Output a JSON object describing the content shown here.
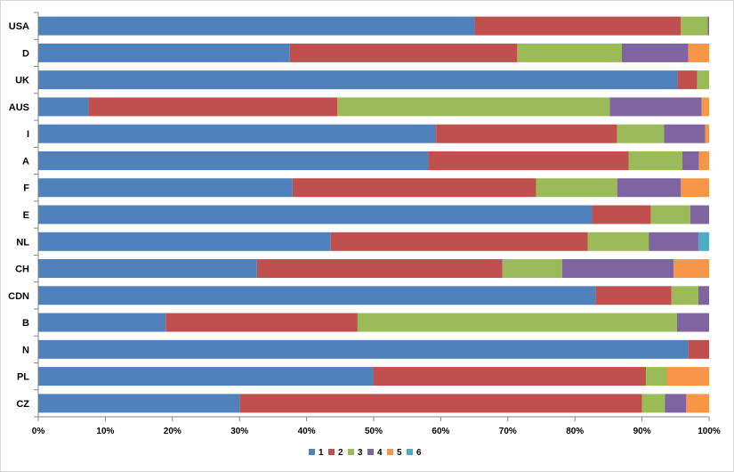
{
  "chart_data": {
    "type": "bar",
    "orientation": "horizontal",
    "stacked": "percent",
    "categories": [
      "USA",
      "D",
      "UK",
      "AUS",
      "I",
      "A",
      "F",
      "E",
      "NL",
      "CH",
      "CDN",
      "B",
      "N",
      "PL",
      "CZ"
    ],
    "series": [
      {
        "name": "1",
        "color": "#4f81bd",
        "values": [
          65,
          37.5,
          95.3,
          7.5,
          59.3,
          58.1,
          37.9,
          82.5,
          43.6,
          32.6,
          83.1,
          19,
          96.9,
          50,
          30
        ]
      },
      {
        "name": "2",
        "color": "#c0504d",
        "values": [
          30.8,
          33.9,
          2.9,
          37.1,
          27,
          29.9,
          36.3,
          8.8,
          38.3,
          36.6,
          11.3,
          28.6,
          3.1,
          40.6,
          60
        ]
      },
      {
        "name": "3",
        "color": "#9bbb59",
        "values": [
          4,
          15.6,
          1.8,
          40.6,
          7,
          8,
          12.1,
          5.9,
          9.1,
          8.9,
          4,
          47.6,
          0,
          3.1,
          3.4
        ]
      },
      {
        "name": "4",
        "color": "#8064a2",
        "values": [
          0.2,
          9.9,
          0,
          13.7,
          6.1,
          2.5,
          9.5,
          2.8,
          7.4,
          16.6,
          1.6,
          4.8,
          0,
          0,
          3.2
        ]
      },
      {
        "name": "5",
        "color": "#f79646",
        "values": [
          0,
          3.1,
          0,
          1.1,
          0.6,
          1.5,
          4.2,
          0,
          0,
          5.3,
          0,
          0,
          0,
          6.3,
          3.4
        ]
      },
      {
        "name": "6",
        "color": "#4bacc6",
        "values": [
          0,
          0,
          0,
          0,
          0,
          0,
          0,
          0,
          1.6,
          0,
          0,
          0,
          0,
          0,
          0
        ]
      }
    ],
    "x_ticks": [
      "0%",
      "10%",
      "20%",
      "30%",
      "40%",
      "50%",
      "60%",
      "70%",
      "80%",
      "90%",
      "100%"
    ],
    "xlim": [
      0,
      100
    ],
    "grid": false,
    "legend_position": "bottom",
    "title": "",
    "xlabel": "",
    "ylabel": ""
  }
}
